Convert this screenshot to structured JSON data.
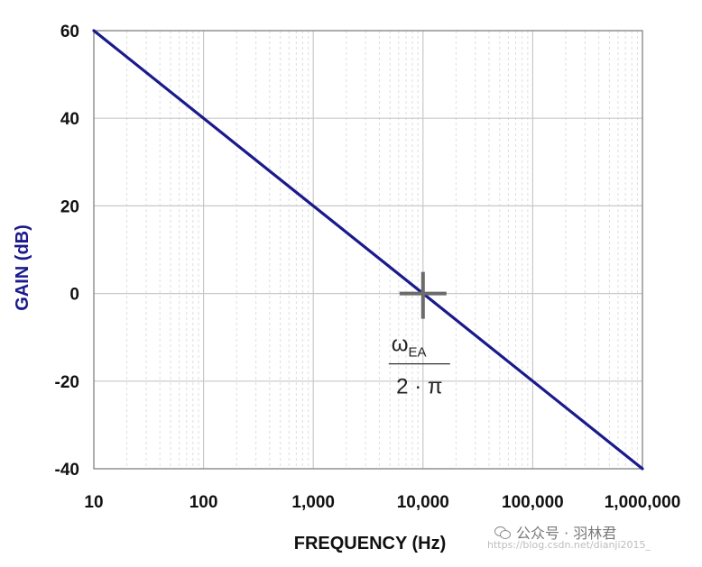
{
  "chart_data": {
    "type": "line",
    "xlabel": "FREQUENCY (Hz)",
    "ylabel": "GAIN (dB)",
    "x_scale": "log",
    "xlim": [
      10,
      1000000
    ],
    "ylim": [
      -40,
      60
    ],
    "x_ticks": [
      {
        "value": 10,
        "label": "10"
      },
      {
        "value": 100,
        "label": "100"
      },
      {
        "value": 1000,
        "label": "1,000"
      },
      {
        "value": 10000,
        "label": "10,000"
      },
      {
        "value": 100000,
        "label": "100,000"
      },
      {
        "value": 1000000,
        "label": "1,000,000"
      }
    ],
    "y_ticks": [
      {
        "value": 60,
        "label": "60"
      },
      {
        "value": 40,
        "label": "40"
      },
      {
        "value": 20,
        "label": "20"
      },
      {
        "value": 0,
        "label": "0"
      },
      {
        "value": -20,
        "label": "-20"
      },
      {
        "value": -40,
        "label": "-40"
      }
    ],
    "grid": {
      "major": true,
      "minor": true
    },
    "series": [
      {
        "color": "#1a1a8c",
        "points": [
          {
            "x": 10,
            "y": 60
          },
          {
            "x": 1000000,
            "y": -40
          }
        ]
      }
    ],
    "annotations": [
      {
        "kind": "crosshair-marker",
        "x": 10000,
        "y": 0,
        "color": "#6b6b6b",
        "label": {
          "numerator": "ω",
          "numerator_subscript": "EA",
          "denominator": "2 · π"
        }
      }
    ],
    "colors": {
      "ylabel": "#1a1a8c",
      "xlabel": "#111111",
      "grid_major": "#c8c8c8",
      "grid_minor": "#dedede",
      "axis": "#888888"
    }
  },
  "watermark": {
    "account": "公众号 · 羽林君",
    "url": "https://blog.csdn.net/dianji2015_"
  }
}
